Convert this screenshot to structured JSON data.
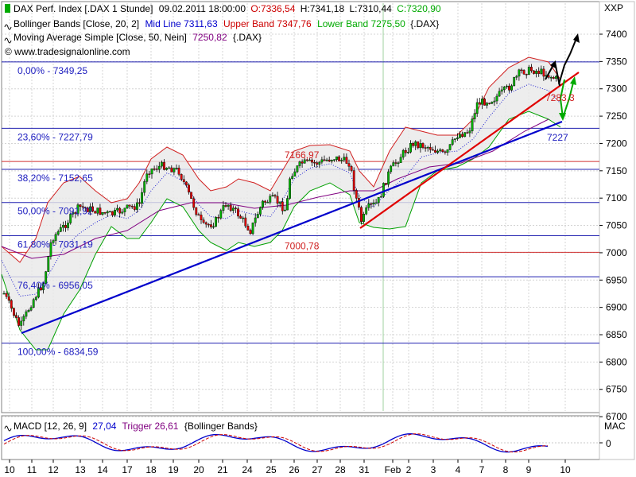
{
  "header": {
    "line1_name": "DAX Perf. Index [.DAX 1 Stunde]",
    "line1_time": "09.02.2011 18:00:00",
    "line1_open": "O:7336,54",
    "line1_high": "H:7341,18",
    "line1_low": "L:7310,44",
    "line1_close": "C:7320,90",
    "line2_name": "Bollinger Bands [Close, 20, 2]",
    "line2_mid": "Mid Line 7311,63",
    "line2_upper": "Upper Band 7347,76",
    "line2_lower": "Lower Band 7275,50",
    "line2_symbol": "{.DAX}",
    "line3_name": "Moving Average Simple [Close, 50, Nein]",
    "line3_value": "7250,82",
    "line3_symbol": "{.DAX}",
    "watermark": "© www.tradesignalonline.com",
    "axis_symbol": "XXP",
    "colors": {
      "open": "#cc0000",
      "upper": "#cc0000",
      "mid": "#0000cc",
      "lower": "#00aa00",
      "ma": "#800080",
      "close": "#00aa00"
    }
  },
  "macd": {
    "name": "MACD [12, 26, 9]",
    "value": "27,04",
    "trigger": "Trigger 26,61",
    "extra": "{Bollinger Bands}",
    "axis_label": "MAC",
    "axis_tick": "0"
  },
  "chart_data": {
    "type": "candlestick",
    "ylim": [
      6680,
      7420
    ],
    "y_ticks": [
      7400,
      7350,
      7300,
      7250,
      7200,
      7150,
      7100,
      7050,
      7000,
      6950,
      6900,
      6850,
      6800,
      6750,
      6700
    ],
    "y_tick_labels": [
      "7400",
      "7350",
      "7300",
      "7250",
      "7200",
      "7150",
      "7100",
      "7050",
      "7000",
      "6950",
      "6900",
      "6850",
      "6800",
      "6750",
      "6700"
    ],
    "x_ticks": [
      "10",
      "11",
      "12",
      "13",
      "14",
      "17",
      "18",
      "19",
      "20",
      "21",
      "24",
      "25",
      "26",
      "27",
      "28",
      "31",
      "Feb",
      "2",
      "3",
      "4",
      "7",
      "8",
      "9",
      "10"
    ],
    "fib_levels": [
      {
        "label": "0,00% - 7349,25",
        "value": 7349.25
      },
      {
        "label": "23,60% - 7227,79",
        "value": 7227.79
      },
      {
        "label": "38,20% - 7152,65",
        "value": 7152.65
      },
      {
        "label": "50,00% - 7091,92",
        "value": 7091.92
      },
      {
        "label": "61,80% - 7031,19",
        "value": 7031.19
      },
      {
        "label": "76,40% - 6956,05",
        "value": 6956.05
      },
      {
        "label": "100,00% - 6834,59",
        "value": 6834.59
      }
    ],
    "horizontal_levels": [
      {
        "label": "7166,97",
        "value": 7166.97
      },
      {
        "label": "7000,78",
        "value": 7000.78
      }
    ],
    "annotations": [
      {
        "label": "7283,3",
        "value": 7283.3
      },
      {
        "label": "7227",
        "value": 7227
      }
    ]
  }
}
